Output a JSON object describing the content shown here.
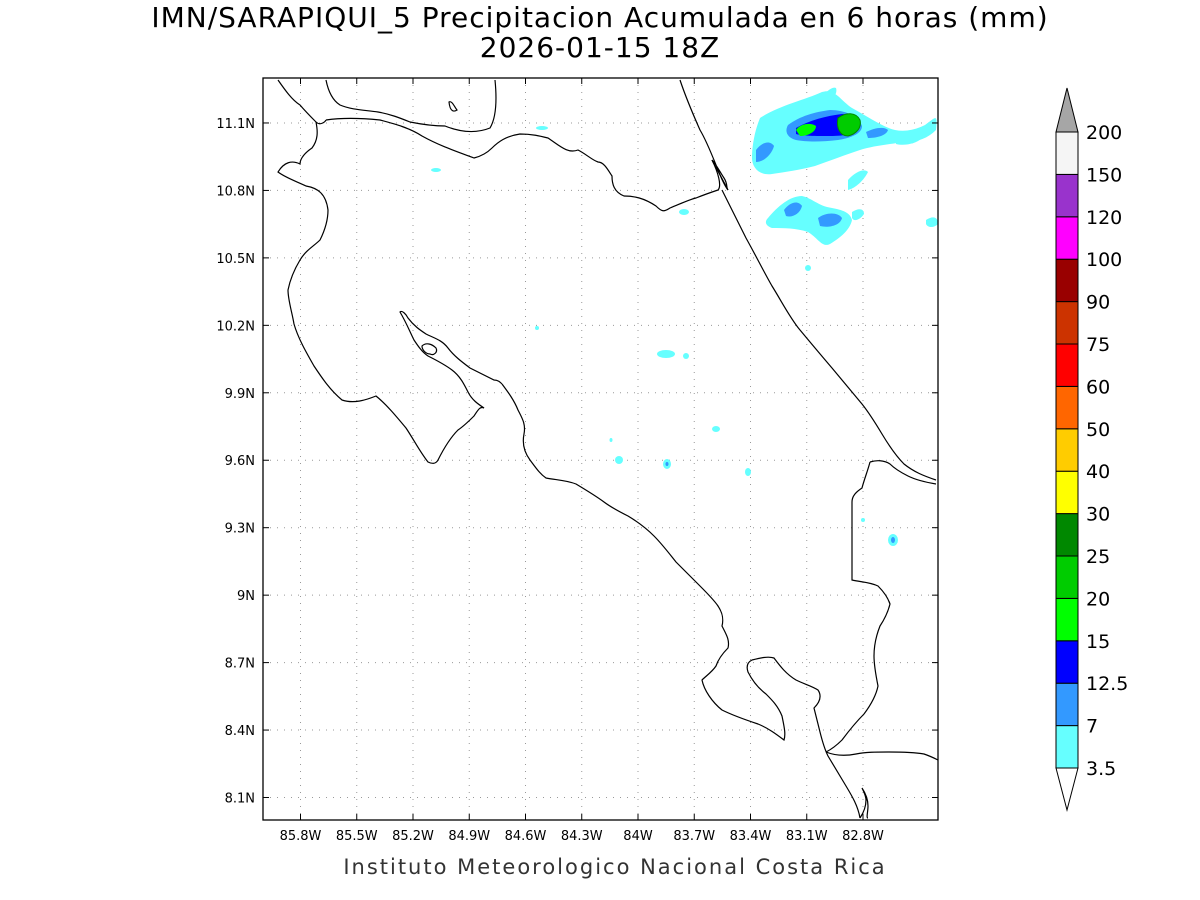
{
  "title": {
    "line1": "IMN/SARAPIQUI_5 Precipitacion Acumulada en 6 horas (mm)",
    "line2": "2026-01-15 18Z"
  },
  "credit": "Instituto Meteorologico Nacional Costa Rica",
  "map": {
    "lon_range": [
      -86.0,
      -82.4
    ],
    "lat_range": [
      8.0,
      11.3
    ],
    "lon_ticks": [
      "85.8W",
      "85.5W",
      "85.2W",
      "84.9W",
      "84.6W",
      "84.3W",
      "84W",
      "83.7W",
      "83.4W",
      "83.1W",
      "82.8W"
    ],
    "lon_tick_values": [
      -85.8,
      -85.5,
      -85.2,
      -84.9,
      -84.6,
      -84.3,
      -84.0,
      -83.7,
      -83.4,
      -83.1,
      -82.8
    ],
    "lat_ticks": [
      "11.1N",
      "10.8N",
      "10.5N",
      "10.2N",
      "9.9N",
      "9.6N",
      "9.3N",
      "9N",
      "8.7N",
      "8.4N",
      "8.1N"
    ],
    "lat_tick_values": [
      11.1,
      10.8,
      10.5,
      10.2,
      9.9,
      9.6,
      9.3,
      9.0,
      8.7,
      8.4,
      8.1
    ],
    "grid": "dotted"
  },
  "legend": {
    "levels": [
      "3.5",
      "7",
      "12.5",
      "15",
      "20",
      "25",
      "30",
      "40",
      "50",
      "60",
      "75",
      "90",
      "100",
      "120",
      "150",
      "200"
    ],
    "colors": [
      "#66ffff",
      "#3399ff",
      "#0000ff",
      "#00ff00",
      "#00cc00",
      "#008800",
      "#ffff00",
      "#ffcc00",
      "#ff6600",
      "#ff0000",
      "#cc3300",
      "#990000",
      "#ff00ff",
      "#9933cc",
      "#f5f5f5",
      "#a6a6a6"
    ]
  },
  "precip_cells": [
    {
      "lon": -83.06,
      "lat": 11.03,
      "level": "3.5"
    },
    {
      "lon": -83.3,
      "lat": 10.95,
      "level": "7"
    },
    {
      "lon": -83.0,
      "lat": 11.08,
      "level": "15"
    },
    {
      "lon": -82.91,
      "lat": 11.1,
      "level": "20"
    },
    {
      "lon": -83.1,
      "lat": 10.71,
      "level": "7"
    },
    {
      "lon": -83.05,
      "lat": 10.7,
      "level": "3.5"
    },
    {
      "lon": -83.95,
      "lat": 10.08,
      "level": "3.5"
    },
    {
      "lon": -82.77,
      "lat": 9.24,
      "level": "7"
    }
  ]
}
